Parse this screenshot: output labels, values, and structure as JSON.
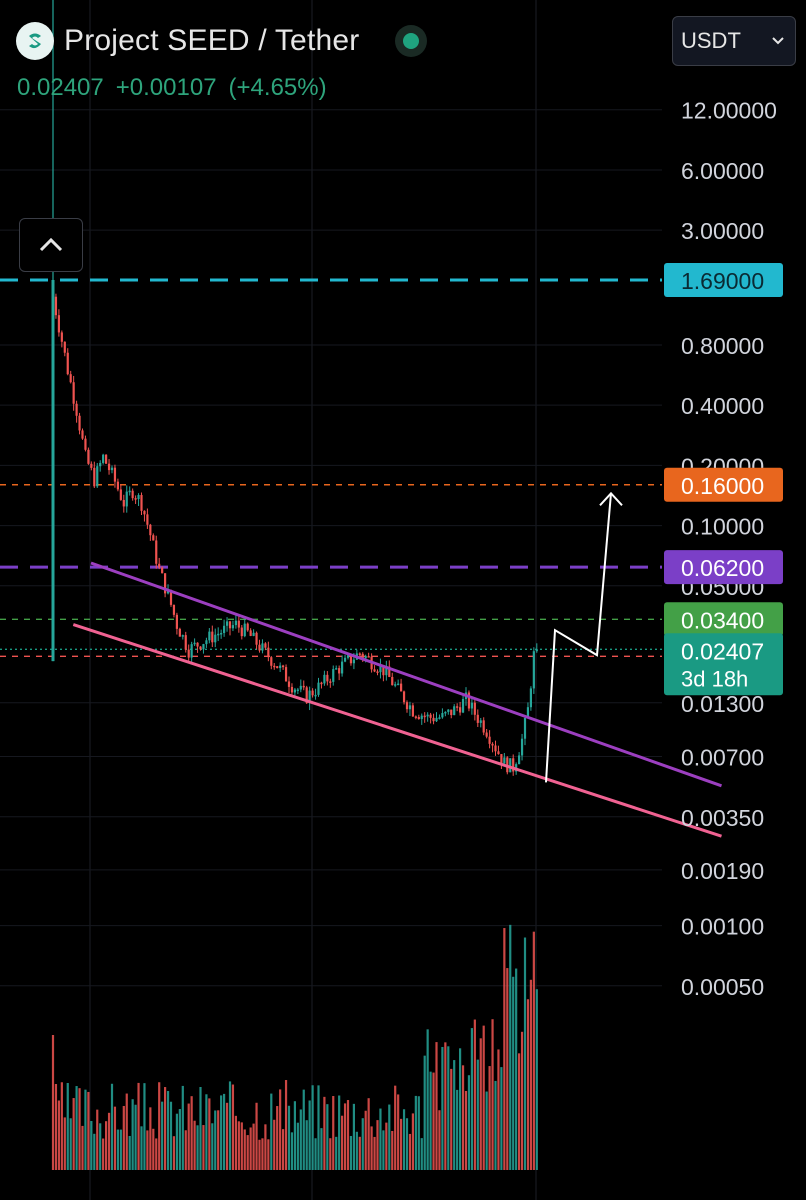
{
  "header": {
    "title": "Project SEED / Tether",
    "last_price": "0.02407",
    "change": "+0.00107",
    "change_pct": "(+4.65%)",
    "currency": "USDT"
  },
  "colors": {
    "background": "#000000",
    "up": "#26a69a",
    "down": "#ef5350",
    "cyan_level": "#22b8cf",
    "orange_level": "#e8661e",
    "purple_level": "#7b3fc7",
    "green_level": "#43a047",
    "last_price": "#1a9a83",
    "upper_trendline": "#9c3fc0",
    "lower_trendline": "#f06292",
    "projection": "#ffffff"
  },
  "chart_data": {
    "type": "candlestick",
    "y_scale": "log",
    "ylim": [
      0.00035,
      15
    ],
    "y_ticks": [
      "12.00000",
      "6.00000",
      "3.00000",
      "0.80000",
      "0.40000",
      "0.20000",
      "0.10000",
      "0.05000",
      "0.01300",
      "0.00700",
      "0.00350",
      "0.00190",
      "0.00100",
      "0.00050"
    ],
    "price_levels": [
      {
        "value": 1.69,
        "label": "1.69000",
        "style": "dashed",
        "color": "#22b8cf"
      },
      {
        "value": 0.16,
        "label": "0.16000",
        "style": "dashed",
        "color": "#e8661e"
      },
      {
        "value": 0.062,
        "label": "0.06200",
        "style": "dashed",
        "color": "#7b3fc7"
      },
      {
        "value": 0.034,
        "label": "0.03400",
        "style": "dashed",
        "color": "#43a047"
      },
      {
        "value": 0.02407,
        "label": "0.02407",
        "sub": "3d 18h",
        "style": "dotted",
        "color": "#1a9a83"
      }
    ],
    "red_reference_level": 0.0222,
    "trendlines": [
      {
        "name": "upper",
        "from": [
          0,
          0.065
        ],
        "to": [
          230,
          0.005
        ]
      },
      {
        "name": "lower",
        "from": [
          -6,
          0.032
        ],
        "to": [
          230,
          0.0028
        ]
      }
    ],
    "projection": [
      [
        20,
        0.0052
      ],
      [
        172,
        0.03
      ],
      [
        181,
        0.0225
      ],
      [
        190,
        0.145
      ]
    ],
    "candles": {
      "count": 165,
      "anchors": [
        [
          0,
          1.65
        ],
        [
          3,
          1.0
        ],
        [
          6,
          0.6
        ],
        [
          9,
          0.38
        ],
        [
          12,
          0.22
        ],
        [
          15,
          0.17
        ],
        [
          18,
          0.22
        ],
        [
          21,
          0.18
        ],
        [
          25,
          0.13
        ],
        [
          28,
          0.15
        ],
        [
          31,
          0.13
        ],
        [
          34,
          0.09
        ],
        [
          37,
          0.06
        ],
        [
          40,
          0.045
        ],
        [
          43,
          0.032
        ],
        [
          47,
          0.024
        ],
        [
          51,
          0.026
        ],
        [
          55,
          0.028
        ],
        [
          59,
          0.03
        ],
        [
          63,
          0.032
        ],
        [
          67,
          0.029
        ],
        [
          72,
          0.024
        ],
        [
          77,
          0.02
        ],
        [
          82,
          0.016
        ],
        [
          87,
          0.014
        ],
        [
          92,
          0.016
        ],
        [
          97,
          0.019
        ],
        [
          101,
          0.021
        ],
        [
          105,
          0.023
        ],
        [
          109,
          0.021
        ],
        [
          113,
          0.019
        ],
        [
          118,
          0.015
        ],
        [
          123,
          0.012
        ],
        [
          128,
          0.011
        ],
        [
          133,
          0.011
        ],
        [
          137,
          0.012
        ],
        [
          141,
          0.0135
        ],
        [
          144,
          0.0115
        ],
        [
          148,
          0.0095
        ],
        [
          151,
          0.0078
        ],
        [
          154,
          0.0065
        ],
        [
          157,
          0.0062
        ],
        [
          160,
          0.0085
        ],
        [
          162,
          0.012
        ],
        [
          164,
          0.0225
        ],
        [
          165,
          0.02407
        ]
      ]
    },
    "volume": {
      "bars": 165,
      "note": "log-scaled volume histogram overlay; largest bars at latest candles"
    }
  }
}
